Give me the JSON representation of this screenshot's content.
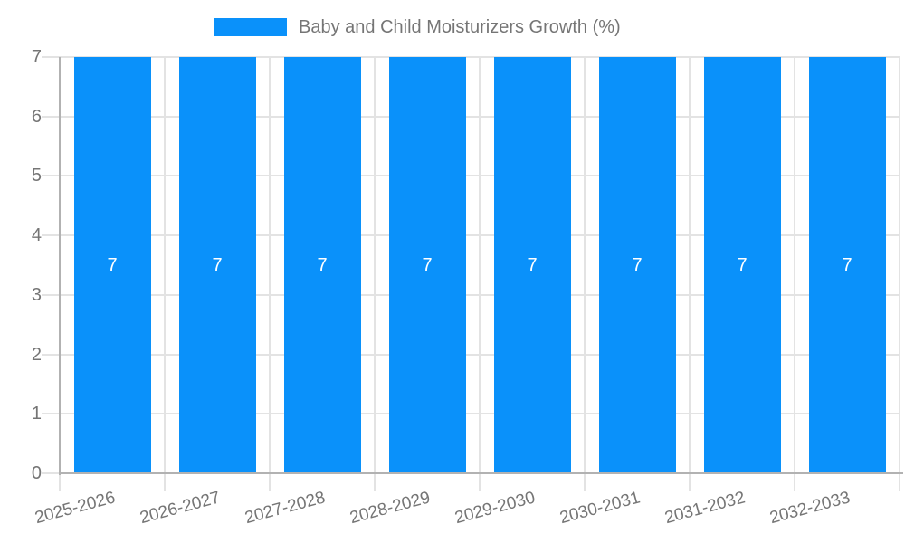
{
  "legend": {
    "label": "Baby and Child Moisturizers Growth (%)"
  },
  "chart_data": {
    "type": "bar",
    "title": "Baby and Child Moisturizers Growth (%)",
    "categories": [
      "2025-2026",
      "2026-2027",
      "2027-2028",
      "2028-2029",
      "2029-2030",
      "2030-2031",
      "2031-2032",
      "2032-2033"
    ],
    "series": [
      {
        "name": "Baby and Child Moisturizers Growth (%)",
        "values": [
          7,
          7,
          7,
          7,
          7,
          7,
          7,
          7
        ]
      }
    ],
    "bar_value_labels": [
      "7",
      "7",
      "7",
      "7",
      "7",
      "7",
      "7",
      "7"
    ],
    "xlabel": "",
    "ylabel": "",
    "ylim": [
      0,
      7
    ],
    "yticks": [
      "0",
      "1",
      "2",
      "3",
      "4",
      "5",
      "6",
      "7"
    ],
    "grid": true,
    "legend_position": "top",
    "colors": {
      "bar": "#0a91fa",
      "bar_value_label": "#ffffff",
      "text": "#757575",
      "axis": "#b2b2b2",
      "grid": "#e3e3e3"
    }
  }
}
